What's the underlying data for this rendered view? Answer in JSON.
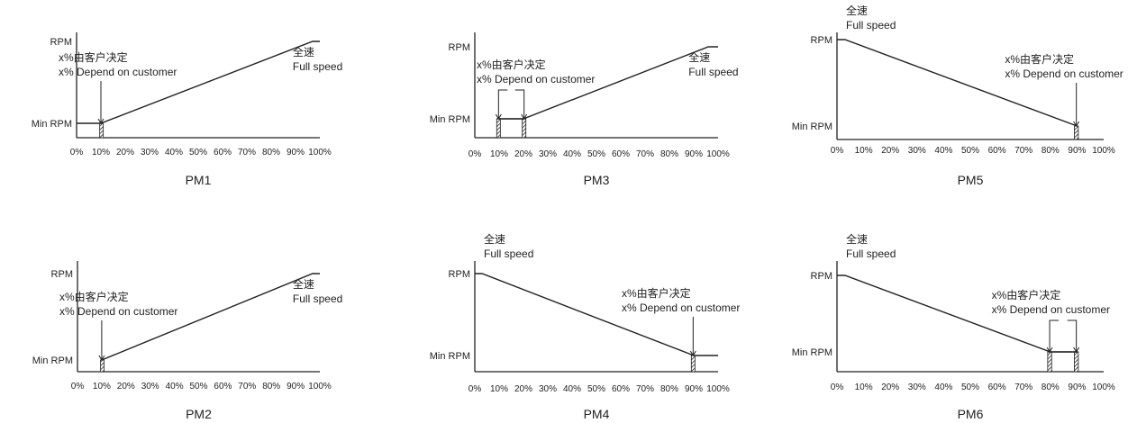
{
  "chart_data": [
    {
      "type": "line",
      "title": "PM1",
      "x_ticks": [
        "0%",
        "10%",
        "20%",
        "30%",
        "40%",
        "50%",
        "60%",
        "70%",
        "80%",
        "90%",
        "100%"
      ],
      "y_labels": [
        "RPM",
        "Min RPM"
      ],
      "series": [
        {
          "x": [
            0,
            10,
            97,
            100
          ],
          "y": [
            "Min RPM",
            "Min RPM",
            "RPM",
            "RPM"
          ]
        }
      ],
      "hatched_ranges": [
        [
          9.5,
          10.5
        ]
      ],
      "annotations": [
        {
          "text": "x%由客户决定",
          "text2": "x% Depend on customer",
          "at_x": 10
        },
        {
          "text": "全速",
          "text2": "Full speed",
          "at_x": 97
        }
      ]
    },
    {
      "type": "line",
      "title": "PM2",
      "x_ticks": [
        "0%",
        "10%",
        "20%",
        "30%",
        "40%",
        "50%",
        "60%",
        "70%",
        "80%",
        "90%",
        "100%"
      ],
      "y_labels": [
        "RPM",
        "Min RPM"
      ],
      "series": [
        {
          "x": [
            10,
            97,
            100
          ],
          "y": [
            "Min RPM",
            "RPM",
            "RPM"
          ]
        }
      ],
      "hatched_ranges": [
        [
          9.5,
          10.5
        ]
      ],
      "annotations": [
        {
          "text": "x%由客户决定",
          "text2": "x% Depend on customer",
          "at_x": 10
        },
        {
          "text": "全速",
          "text2": "Full speed",
          "at_x": 97
        }
      ]
    },
    {
      "type": "line",
      "title": "PM3",
      "x_ticks": [
        "0%",
        "10%",
        "20%",
        "30%",
        "40%",
        "50%",
        "60%",
        "70%",
        "80%",
        "90%",
        "100%"
      ],
      "y_labels": [
        "RPM",
        "Min RPM"
      ],
      "series": [
        {
          "x": [
            10,
            20,
            96,
            100
          ],
          "y": [
            "Min RPM",
            "Min RPM",
            "RPM",
            "RPM"
          ]
        }
      ],
      "hatched_ranges": [
        [
          9,
          10.5
        ],
        [
          19.5,
          21
        ]
      ],
      "annotations": [
        {
          "text": "x%由客户决定",
          "text2": "x% Depend on customer",
          "at_x": 15
        },
        {
          "text": "全速",
          "text2": "Full speed",
          "at_x": 96
        }
      ]
    },
    {
      "type": "line",
      "title": "PM4",
      "x_ticks": [
        "0%",
        "10%",
        "20%",
        "30%",
        "40%",
        "50%",
        "60%",
        "70%",
        "80%",
        "90%",
        "100%"
      ],
      "y_labels": [
        "RPM",
        "Min RPM"
      ],
      "series": [
        {
          "x": [
            0,
            3,
            90,
            100
          ],
          "y": [
            "RPM",
            "RPM",
            "Min RPM",
            "Min RPM"
          ]
        }
      ],
      "hatched_ranges": [
        [
          89,
          90.5
        ]
      ],
      "annotations": [
        {
          "text": "全速",
          "text2": "Full speed",
          "at_x": 3
        },
        {
          "text": "x%由客户决定",
          "text2": "x% Depend on customer",
          "at_x": 90
        }
      ]
    },
    {
      "type": "line",
      "title": "PM5",
      "x_ticks": [
        "0%",
        "10%",
        "20%",
        "30%",
        "40%",
        "50%",
        "60%",
        "70%",
        "80%",
        "90%",
        "100%"
      ],
      "y_labels": [
        "RPM",
        "Min RPM"
      ],
      "series": [
        {
          "x": [
            0,
            3,
            90
          ],
          "y": [
            "RPM",
            "RPM",
            "Min RPM"
          ]
        }
      ],
      "hatched_ranges": [
        [
          89,
          90.5
        ]
      ],
      "annotations": [
        {
          "text": "全速",
          "text2": "Full speed",
          "at_x": 3
        },
        {
          "text": "x%由客户决定",
          "text2": "x% Depend on customer",
          "at_x": 90
        }
      ]
    },
    {
      "type": "line",
      "title": "PM6",
      "x_ticks": [
        "0%",
        "10%",
        "20%",
        "30%",
        "40%",
        "50%",
        "60%",
        "70%",
        "80%",
        "90%",
        "100%"
      ],
      "y_labels": [
        "RPM",
        "Min RPM"
      ],
      "series": [
        {
          "x": [
            0,
            3,
            80,
            90
          ],
          "y": [
            "RPM",
            "RPM",
            "Min RPM",
            "Min RPM"
          ]
        }
      ],
      "hatched_ranges": [
        [
          79,
          80.5
        ],
        [
          89,
          90.5
        ]
      ],
      "annotations": [
        {
          "text": "全速",
          "text2": "Full speed",
          "at_x": 3
        },
        {
          "text": "x%由客户决定",
          "text2": "x% Depend on customer",
          "at_x": 85
        }
      ]
    }
  ]
}
